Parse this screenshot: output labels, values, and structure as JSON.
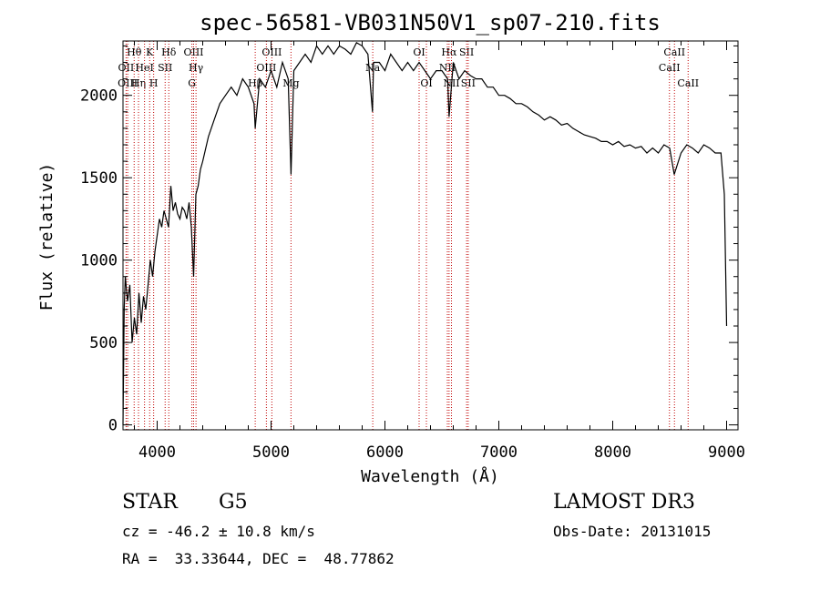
{
  "chart_data": {
    "type": "line",
    "title": "spec-56581-VB031N50V1_sp07-210.fits",
    "xlabel": "Wavelength (Å)",
    "ylabel": "Flux (relative)",
    "xlim": [
      3700,
      9100
    ],
    "ylim": [
      -30,
      2330
    ],
    "xticks": [
      4000,
      5000,
      6000,
      7000,
      8000,
      9000
    ],
    "yticks": [
      0,
      500,
      1000,
      1500,
      2000
    ],
    "series": [
      {
        "name": "spectrum",
        "x": [
          3700,
          3710,
          3720,
          3740,
          3760,
          3780,
          3800,
          3820,
          3840,
          3860,
          3880,
          3900,
          3920,
          3940,
          3960,
          3980,
          4000,
          4020,
          4040,
          4060,
          4080,
          4100,
          4120,
          4140,
          4160,
          4180,
          4200,
          4220,
          4240,
          4260,
          4280,
          4300,
          4320,
          4340,
          4360,
          4380,
          4400,
          4450,
          4500,
          4550,
          4600,
          4650,
          4700,
          4750,
          4800,
          4850,
          4861,
          4900,
          4950,
          5000,
          5050,
          5100,
          5150,
          5175,
          5200,
          5250,
          5300,
          5350,
          5400,
          5450,
          5500,
          5550,
          5600,
          5650,
          5700,
          5750,
          5800,
          5850,
          5890,
          5900,
          5950,
          6000,
          6050,
          6100,
          6150,
          6200,
          6250,
          6300,
          6350,
          6400,
          6450,
          6500,
          6550,
          6563,
          6600,
          6650,
          6700,
          6750,
          6800,
          6850,
          6900,
          6950,
          7000,
          7050,
          7100,
          7150,
          7200,
          7250,
          7300,
          7350,
          7400,
          7450,
          7500,
          7550,
          7600,
          7650,
          7700,
          7750,
          7800,
          7850,
          7900,
          7950,
          8000,
          8050,
          8100,
          8150,
          8200,
          8250,
          8300,
          8350,
          8400,
          8450,
          8500,
          8540,
          8600,
          8650,
          8700,
          8750,
          8800,
          8850,
          8900,
          8950,
          8980,
          9000
        ],
        "values": [
          0,
          700,
          900,
          750,
          850,
          500,
          650,
          550,
          800,
          620,
          780,
          700,
          850,
          1000,
          900,
          1050,
          1150,
          1250,
          1200,
          1300,
          1250,
          1200,
          1450,
          1300,
          1350,
          1280,
          1250,
          1320,
          1300,
          1250,
          1350,
          1200,
          900,
          1400,
          1450,
          1550,
          1600,
          1750,
          1850,
          1950,
          2000,
          2050,
          2000,
          2100,
          2050,
          1950,
          1800,
          2100,
          2050,
          2150,
          2050,
          2200,
          2100,
          1520,
          2150,
          2200,
          2250,
          2200,
          2300,
          2250,
          2300,
          2250,
          2300,
          2280,
          2250,
          2320,
          2300,
          2250,
          1900,
          2200,
          2200,
          2150,
          2250,
          2200,
          2150,
          2200,
          2150,
          2200,
          2150,
          2100,
          2150,
          2150,
          2100,
          1870,
          2200,
          2100,
          2150,
          2120,
          2100,
          2100,
          2050,
          2050,
          2000,
          2000,
          1980,
          1950,
          1950,
          1930,
          1900,
          1880,
          1850,
          1870,
          1850,
          1820,
          1830,
          1800,
          1780,
          1760,
          1750,
          1740,
          1720,
          1720,
          1700,
          1720,
          1690,
          1700,
          1680,
          1690,
          1650,
          1680,
          1650,
          1700,
          1680,
          1520,
          1650,
          1700,
          1680,
          1650,
          1700,
          1680,
          1650,
          1650,
          1400,
          600
        ]
      }
    ],
    "spectral_lines": [
      {
        "label": "Hθ",
        "wave": 3798,
        "row": 0
      },
      {
        "label": "OII",
        "wave": 3727,
        "row": 1
      },
      {
        "label": "OIII",
        "wave": 3741,
        "row": 2
      },
      {
        "label": "Hη",
        "wave": 3836,
        "row": 2
      },
      {
        "label": "HeI",
        "wave": 3889,
        "row": 1
      },
      {
        "label": "K",
        "wave": 3934,
        "row": 0
      },
      {
        "label": "H",
        "wave": 3969,
        "row": 2
      },
      {
        "label": "SII",
        "wave": 4070,
        "row": 1
      },
      {
        "label": "Hδ",
        "wave": 4102,
        "row": 0
      },
      {
        "label": "OIII",
        "wave": 4320,
        "row": 0
      },
      {
        "label": "Hγ",
        "wave": 4341,
        "row": 1
      },
      {
        "label": "G",
        "wave": 4305,
        "row": 2
      },
      {
        "label": "Hβ",
        "wave": 4861,
        "row": 2
      },
      {
        "label": "OIII",
        "wave": 5007,
        "row": 0
      },
      {
        "label": "OIII",
        "wave": 4959,
        "row": 1
      },
      {
        "label": "Mg",
        "wave": 5175,
        "row": 2
      },
      {
        "label": "Na",
        "wave": 5893,
        "row": 1
      },
      {
        "label": "OI",
        "wave": 6300,
        "row": 0
      },
      {
        "label": "OI",
        "wave": 6364,
        "row": 2
      },
      {
        "label": "Hα",
        "wave": 6563,
        "row": 0
      },
      {
        "label": "NII",
        "wave": 6548,
        "row": 1
      },
      {
        "label": "NII",
        "wave": 6584,
        "row": 2
      },
      {
        "label": "SII",
        "wave": 6717,
        "row": 0
      },
      {
        "label": "SII",
        "wave": 6731,
        "row": 2
      },
      {
        "label": "CaII",
        "wave": 8542,
        "row": 0
      },
      {
        "label": "CaII",
        "wave": 8498,
        "row": 1
      },
      {
        "label": "CaII",
        "wave": 8662,
        "row": 2
      }
    ]
  },
  "info": {
    "object_class": "STAR",
    "subclass": "G5",
    "survey": "LAMOST DR3",
    "cz": "cz = -46.2 ± 10.8 km/s",
    "obs_date": "Obs-Date: 20131015",
    "coords": "RA =  33.33644, DEC =  48.77862"
  }
}
